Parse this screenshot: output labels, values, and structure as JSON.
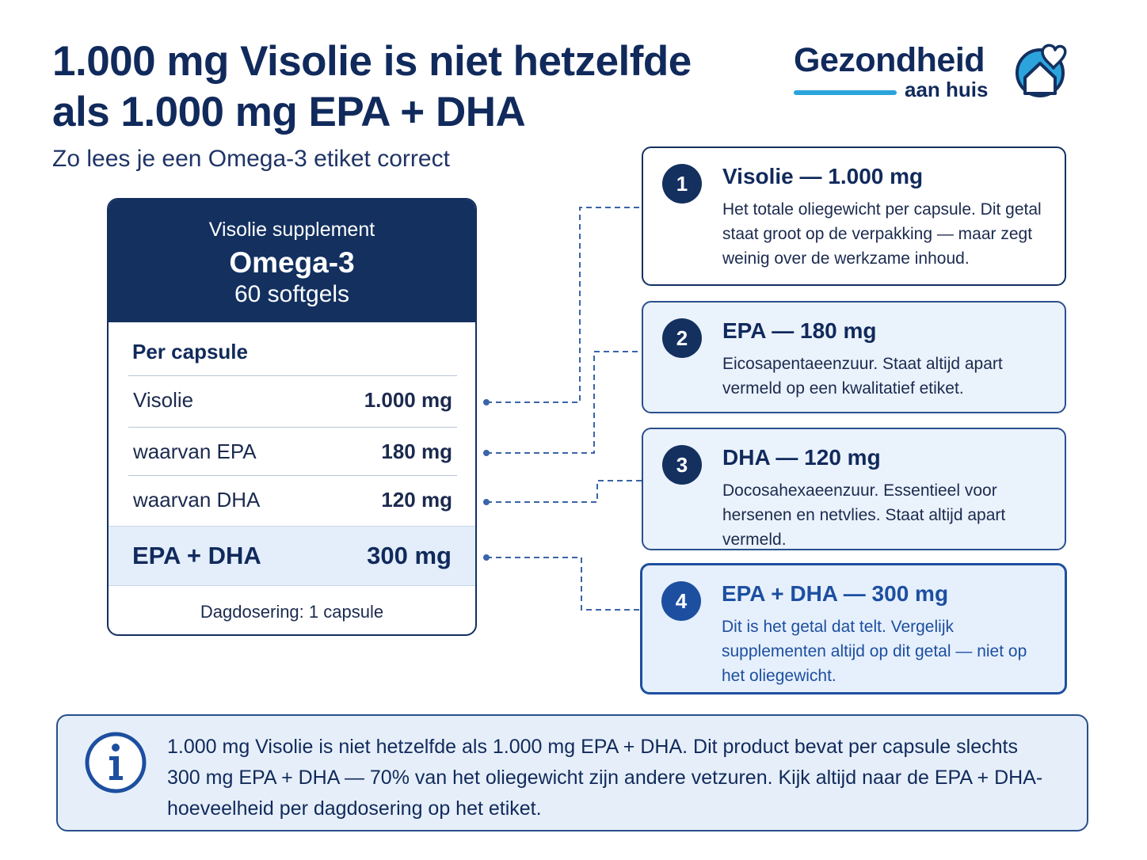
{
  "title": {
    "line1": "1.000 mg Visolie is niet hetzelfde",
    "line2": "als 1.000 mg EPA + DHA",
    "subtitle": "Zo lees je een Omega-3 etiket correct"
  },
  "logo": {
    "main": "Gezondheid",
    "sub": "aan huis",
    "icon": "heart-house-icon",
    "accent_color": "#2ba4dc"
  },
  "label": {
    "top": "Visolie supplement",
    "name": "Omega-3",
    "count": "60 softgels",
    "per_capsule": "Per capsule",
    "rows": [
      {
        "name": "Visolie",
        "value": "1.000 mg"
      },
      {
        "name": "waarvan EPA",
        "value": "180 mg"
      },
      {
        "name": "waarvan DHA",
        "value": "120 mg"
      }
    ],
    "total": {
      "name": "EPA + DHA",
      "value": "300 mg"
    },
    "daily": "Dagdosering: 1 capsule"
  },
  "callouts": [
    {
      "num": "1",
      "title": "Visolie — 1.000 mg",
      "body": "Het totale oliegewicht per capsule. Dit getal staat groot op de verpakking — maar zegt weinig over de werkzame inhoud."
    },
    {
      "num": "2",
      "title": "EPA — 180 mg",
      "body": "Eicosapentaeenzuur. Staat altijd apart vermeld op een kwalitatief etiket."
    },
    {
      "num": "3",
      "title": "DHA — 120 mg",
      "body": "Docosahexaeenzuur. Essentieel voor hersenen en netvlies. Staat altijd apart vermeld."
    },
    {
      "num": "4",
      "title": "EPA + DHA — 300 mg",
      "body": "Dit is het getal dat telt. Vergelijk supplementen altijd op dit getal — niet op het oliegewicht."
    }
  ],
  "info": {
    "icon": "info-icon",
    "text": "1.000 mg Visolie is niet hetzelfde als 1.000 mg EPA + DHA. Dit product bevat per capsule slechts 300 mg EPA + DHA — 70% van het oliegewicht zijn andere vetzuren. Kijk altijd naar de EPA + DHA-hoeveelheid per dagdosering op het etiket."
  },
  "colors": {
    "navy": "#13305f",
    "highlight_blue": "#1d4fa0",
    "tint": "#e6f0fc"
  }
}
